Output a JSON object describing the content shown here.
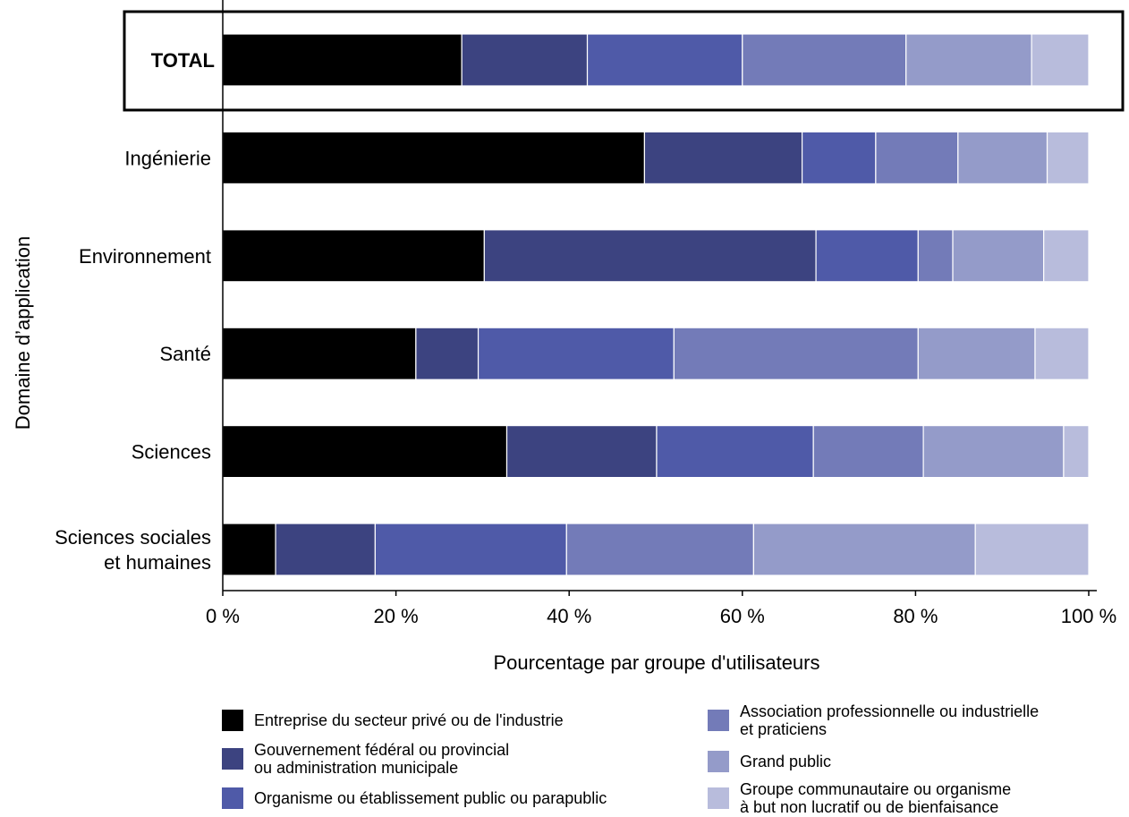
{
  "chart_data": {
    "type": "bar",
    "orientation": "horizontal",
    "stacked": true,
    "xlabel": "Pourcentage par groupe d'utilisateurs",
    "ylabel": "Domaine d’application",
    "xlim": [
      0,
      100
    ],
    "x_ticks": [
      "0 %",
      "20 %",
      "40 %",
      "60 %",
      "80 %",
      "100 %"
    ],
    "grid": false,
    "legend_placement": "bottom",
    "highlighted_category": "TOTAL",
    "categories": [
      "TOTAL",
      "Ingénierie",
      "Environnement",
      "Santé",
      "Sciences",
      "Sciences sociales\net humaines"
    ],
    "series": [
      {
        "name": "Entreprise du secteur privé ou de l'industrie",
        "color": "#000000",
        "values": [
          27.6,
          48.7,
          30.2,
          22.3,
          32.8,
          6.1
        ]
      },
      {
        "name": "Gouvernement fédéral ou provincial\nou administration municipale",
        "color": "#3c4380",
        "values": [
          14.5,
          18.2,
          38.3,
          7.2,
          17.3,
          11.5
        ]
      },
      {
        "name": "Organisme ou établissement public ou parapublic",
        "color": "#4f5aa8",
        "values": [
          17.9,
          8.5,
          11.8,
          22.6,
          18.1,
          22.1
        ]
      },
      {
        "name": "Association professionnelle ou industrielle\net praticiens",
        "color": "#737bb8",
        "values": [
          18.9,
          9.5,
          4.0,
          28.2,
          12.7,
          21.6
        ]
      },
      {
        "name": "Grand public",
        "color": "#949bc9",
        "values": [
          14.5,
          10.3,
          10.5,
          13.5,
          16.2,
          25.6
        ]
      },
      {
        "name": "Groupe communautaire ou organisme\nà but non lucratif ou de bienfaisance",
        "color": "#b8bcdc",
        "values": [
          6.6,
          4.8,
          5.2,
          6.2,
          2.9,
          13.1
        ]
      }
    ]
  }
}
